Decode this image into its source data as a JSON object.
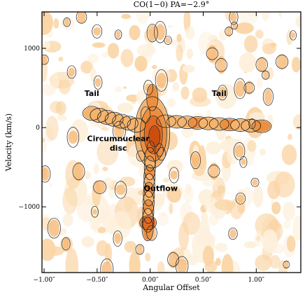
{
  "chart_data": {
    "type": "heatmap",
    "title": "CO(1−0)     PA=−2.9°",
    "xlabel": "Angular Offset",
    "ylabel": "Velocity (km/s)",
    "xlim": [
      -1.02,
      1.42
    ],
    "ylim": [
      -1830,
      1460
    ],
    "x_ticks": [
      {
        "value": -1.0,
        "label": "−1.00″"
      },
      {
        "value": -0.5,
        "label": "−0.50″"
      },
      {
        "value": 0.0,
        "label": "0.00″"
      },
      {
        "value": 0.5,
        "label": "0.50″"
      },
      {
        "value": 1.0,
        "label": "1.00″"
      }
    ],
    "y_ticks": [
      {
        "value": 1000,
        "label": "1000"
      },
      {
        "value": 0,
        "label": "0"
      },
      {
        "value": -1000,
        "label": "−1000"
      }
    ],
    "grid": false,
    "annotations": [
      {
        "text": "Tail",
        "x": -0.55,
        "y": 400
      },
      {
        "text": "Tail",
        "x": 0.65,
        "y": 400
      },
      {
        "text": "Circumnuclear",
        "x": -0.3,
        "y": -170
      },
      {
        "text": "disc",
        "x": -0.3,
        "y": -290
      },
      {
        "text": "Outflow",
        "x": 0.1,
        "y": -800
      }
    ],
    "colormap": [
      "#ffffff",
      "#fdf0dc",
      "#fad5a6",
      "#f5b46e",
      "#ed8f3f",
      "#e06a22",
      "#c94e10"
    ],
    "features": [
      {
        "name": "core",
        "x": 0.02,
        "y": -80,
        "intensity": 1.0
      },
      {
        "name": "east tail",
        "x": -0.35,
        "y": 180,
        "intensity": 0.45
      },
      {
        "name": "west tail",
        "x": 0.55,
        "y": 0,
        "intensity": 0.4
      },
      {
        "name": "outflow",
        "x": 0.0,
        "y": -650,
        "intensity": 0.5
      },
      {
        "name": "outflow knot",
        "x": -0.02,
        "y": -1200,
        "intensity": 0.55
      }
    ]
  }
}
